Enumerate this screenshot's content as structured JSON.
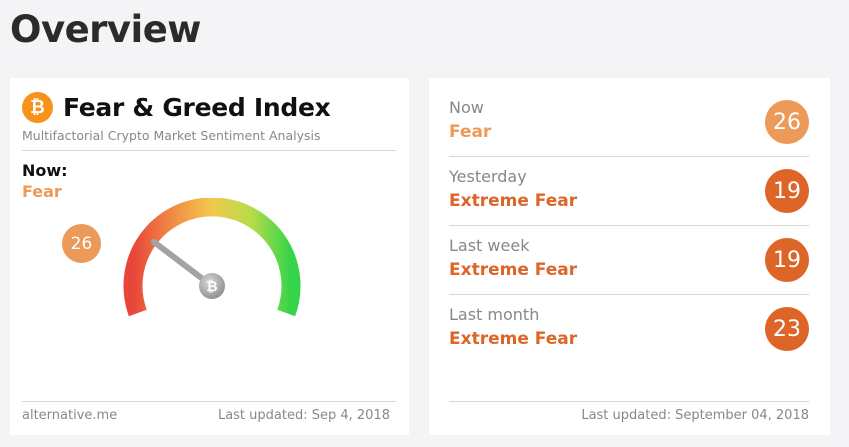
{
  "page": {
    "title": "Overview"
  },
  "index_card": {
    "logo_glyph": "₿",
    "title": "Fear & Greed Index",
    "subtitle": "Multifactorial Crypto Market Sentiment Analysis",
    "now_label": "Now:",
    "now_value": "Fear",
    "gauge": {
      "value": 26,
      "min": 0,
      "max": 100,
      "center_glyph": "₿",
      "colors": {
        "low": "#e8463a",
        "mid": "#f2c94c",
        "high": "#35d44a",
        "needle": "#a3a3a3"
      }
    },
    "value_badge": "26",
    "source": "alternative.me",
    "last_updated": "Last updated: Sep 4, 2018"
  },
  "history": {
    "items": [
      {
        "label": "Now",
        "classification": "Fear",
        "value": "26",
        "color": "#ec9a59"
      },
      {
        "label": "Yesterday",
        "classification": "Extreme Fear",
        "value": "19",
        "color": "#dd6527"
      },
      {
        "label": "Last week",
        "classification": "Extreme Fear",
        "value": "19",
        "color": "#dd6527"
      },
      {
        "label": "Last month",
        "classification": "Extreme Fear",
        "value": "23",
        "color": "#dd6527"
      }
    ],
    "last_updated": "Last updated: September 04, 2018"
  },
  "colors": {
    "fear": "#ec9a59",
    "extreme_fear": "#dd6527",
    "bitcoin": "#f7931a"
  }
}
